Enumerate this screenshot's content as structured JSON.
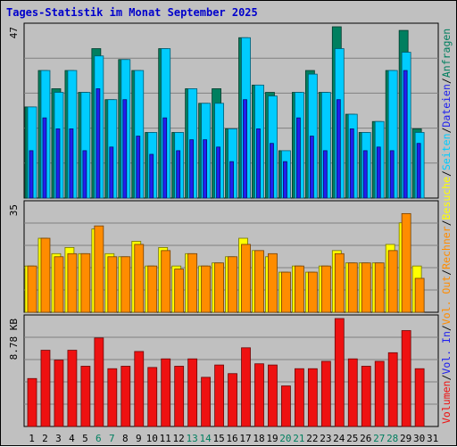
{
  "chart_data": [
    {
      "panel": "top",
      "type": "bar",
      "title": "Tages-Statistik im Monat September 2025",
      "y_tick_label": "47",
      "ylim": [
        0,
        47
      ],
      "grid": true,
      "categories": [
        "1",
        "2",
        "3",
        "4",
        "5",
        "6",
        "7",
        "8",
        "9",
        "10",
        "11",
        "12",
        "13",
        "14",
        "15",
        "16",
        "17",
        "18",
        "19",
        "20",
        "21",
        "22",
        "23",
        "24",
        "25",
        "26",
        "27",
        "28",
        "29",
        "30",
        "31"
      ],
      "series": [
        {
          "name": "Anfragen",
          "color": "#007f5f",
          "values": [
            25,
            35,
            30,
            35,
            29,
            41,
            27,
            38,
            35,
            18,
            41,
            18,
            30,
            26,
            30,
            19,
            44,
            31,
            29,
            13,
            29,
            35,
            29,
            47,
            23,
            18,
            21,
            35,
            46,
            19,
            0
          ]
        },
        {
          "name": "Seiten",
          "color": "#00ccff",
          "values": [
            25,
            35,
            29,
            35,
            29,
            39,
            27,
            38,
            35,
            18,
            41,
            18,
            30,
            26,
            26,
            19,
            44,
            31,
            28,
            13,
            29,
            34,
            29,
            41,
            23,
            18,
            21,
            35,
            40,
            18,
            0
          ]
        },
        {
          "name": "Dateien",
          "color": "#2020ee",
          "values": [
            13,
            22,
            19,
            19,
            13,
            30,
            14,
            27,
            17,
            12,
            22,
            13,
            16,
            16,
            14,
            10,
            27,
            19,
            15,
            10,
            22,
            17,
            13,
            27,
            19,
            13,
            14,
            13,
            35,
            15,
            0
          ]
        }
      ],
      "right_label": [
        "Anfragen",
        "Dateien",
        "Seiten"
      ]
    },
    {
      "panel": "middle",
      "type": "bar",
      "y_tick_label": "35",
      "ylim": [
        0,
        35
      ],
      "grid": true,
      "series": [
        {
          "name": "Besuche",
          "color": "#ffff00",
          "values": [
            15,
            24,
            19,
            21,
            19,
            27,
            19,
            18,
            23,
            15,
            21,
            15,
            19,
            15,
            16,
            18,
            24,
            20,
            18,
            13,
            15,
            13,
            15,
            20,
            16,
            16,
            16,
            22,
            29,
            15,
            0
          ]
        },
        {
          "name": "Rechner",
          "color": "#ff8c00",
          "values": [
            15,
            24,
            18,
            19,
            19,
            28,
            18,
            18,
            22,
            15,
            20,
            14,
            19,
            15,
            16,
            18,
            22,
            20,
            19,
            13,
            15,
            13,
            15,
            19,
            16,
            16,
            16,
            20,
            32,
            11,
            0
          ]
        }
      ],
      "right_label": [
        "Besuche",
        "Rechner",
        "Vol. Out"
      ]
    },
    {
      "panel": "bottom",
      "type": "bar",
      "y_tick_label": "8.78 KB",
      "ylim": [
        0,
        8.78
      ],
      "grid": true,
      "series": [
        {
          "name": "Volumen",
          "color": "#ee1111",
          "values": [
            3.9,
            6.2,
            5.4,
            6.2,
            4.9,
            7.2,
            4.7,
            4.9,
            6.1,
            4.8,
            5.5,
            4.9,
            5.5,
            4.0,
            5.0,
            4.3,
            6.4,
            5.1,
            5.0,
            3.3,
            4.7,
            4.7,
            5.3,
            8.78,
            5.5,
            4.9,
            5.3,
            6.0,
            7.8,
            4.7,
            0
          ]
        }
      ],
      "right_label": [
        "Volumen",
        "Vol. In"
      ]
    }
  ],
  "right_axis_label_colors": {
    "Anfragen": "#007f5f",
    "Dateien": "#2020ee",
    "Seiten": "#00ccff",
    "Besuche": "#ffff00",
    "Rechner": "#ff8c00",
    "Vol. Out": "#ff8c00",
    "Vol. In": "#2020ee",
    "Volumen": "#ee1111"
  },
  "x_axis": {
    "labels": [
      "1",
      "2",
      "3",
      "4",
      "5",
      "6",
      "7",
      "8",
      "9",
      "10",
      "11",
      "12",
      "13",
      "14",
      "15",
      "16",
      "17",
      "18",
      "19",
      "20",
      "21",
      "22",
      "23",
      "24",
      "25",
      "26",
      "27",
      "28",
      "29",
      "30",
      "31"
    ],
    "weekend_days": [
      "6",
      "7",
      "13",
      "14",
      "20",
      "21",
      "27",
      "28"
    ],
    "weekday_color": "#000000",
    "weekend_color": "#007f5f"
  }
}
